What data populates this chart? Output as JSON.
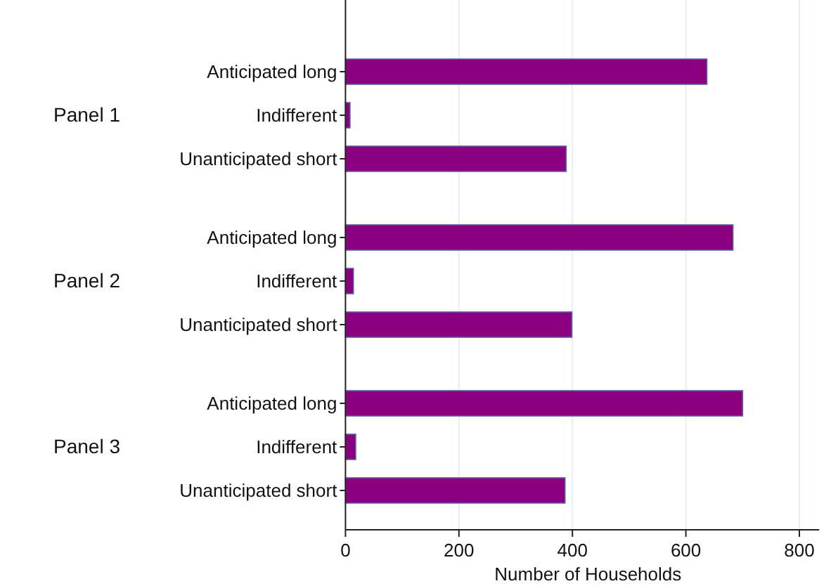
{
  "chart_data": [
    {
      "type": "bar",
      "orientation": "horizontal",
      "title": "Panel 1",
      "categories": [
        "Anticipated long",
        "Indifferent",
        "Unanticipated short"
      ],
      "values": [
        637,
        8,
        389
      ],
      "color": "#8b007f",
      "xlim": [
        0,
        800
      ],
      "xticks": [
        0,
        200,
        400,
        600,
        800
      ],
      "grid": "x",
      "tick_labels": "y"
    },
    {
      "type": "bar",
      "orientation": "horizontal",
      "title": "Panel 2",
      "categories": [
        "Anticipated long",
        "Indifferent",
        "Unanticipated short"
      ],
      "values": [
        683,
        14,
        399
      ],
      "color": "#8b007f",
      "xlim": [
        0,
        800
      ],
      "xticks": [
        0,
        200,
        400,
        600,
        800
      ],
      "grid": "x",
      "tick_labels": "y"
    },
    {
      "type": "bar",
      "orientation": "horizontal",
      "title": "Panel 3",
      "xlabel": "Number of Households",
      "categories": [
        "Anticipated long",
        "Indifferent",
        "Unanticipated short"
      ],
      "values": [
        700,
        18,
        387
      ],
      "color": "#8b007f",
      "xlim": [
        0,
        835
      ],
      "xticks": [
        0,
        200,
        400,
        600,
        800
      ],
      "grid": "x"
    }
  ]
}
